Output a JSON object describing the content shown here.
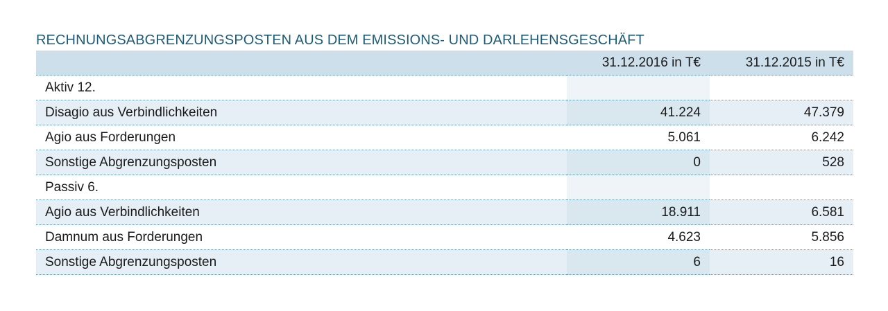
{
  "title": "RECHNUNGSABGRENZUNGSPOSTEN AUS DEM EMISSIONS- UND DARLEHENSGESCHÄFT",
  "columns": {
    "label": "",
    "year1": "31.12.2016 in T€",
    "year2": "31.12.2015 in T€"
  },
  "rows": [
    {
      "label": "Aktiv 12.",
      "year1": "",
      "year2": ""
    },
    {
      "label": "Disagio aus Verbindlichkeiten",
      "year1": "41.224",
      "year2": "47.379"
    },
    {
      "label": "Agio aus Forderungen",
      "year1": "5.061",
      "year2": "6.242"
    },
    {
      "label": "Sonstige Abgrenzungsposten",
      "year1": "0",
      "year2": "528"
    },
    {
      "label": "Passiv 6.",
      "year1": "",
      "year2": ""
    },
    {
      "label": "Agio aus Verbindlichkeiten",
      "year1": "18.911",
      "year2": "6.581"
    },
    {
      "label": "Damnum aus Forderungen",
      "year1": "4.623",
      "year2": "5.856"
    },
    {
      "label": "Sonstige Abgrenzungsposten",
      "year1": "6",
      "year2": "16"
    }
  ],
  "colors": {
    "title": "#1d5c78",
    "header_bg": "#cddfea",
    "shaded_row_bg": "#e5eff5",
    "separator": "#5f8ea5"
  }
}
